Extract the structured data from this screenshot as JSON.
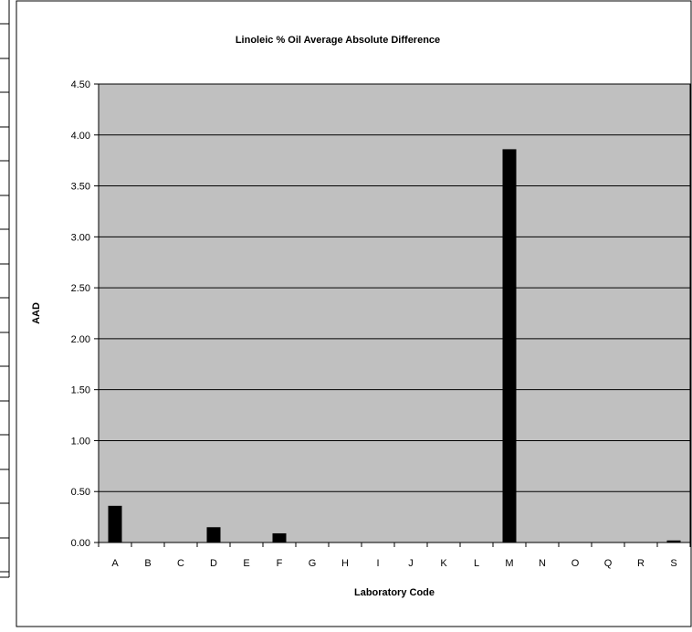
{
  "chart_data": {
    "type": "bar",
    "title": "Linoleic % Oil Average Absolute Difference",
    "xlabel": "Laboratory Code",
    "ylabel": "AAD",
    "categories": [
      "A",
      "B",
      "C",
      "D",
      "E",
      "F",
      "G",
      "H",
      "I",
      "J",
      "K",
      "L",
      "M",
      "N",
      "O",
      "Q",
      "R",
      "S"
    ],
    "values": [
      0.36,
      0,
      0,
      0.15,
      0,
      0.09,
      0,
      0,
      0,
      0,
      0,
      0,
      3.86,
      0,
      0,
      0,
      0,
      0.02
    ],
    "ylim": [
      0,
      4.5
    ],
    "yticks": [
      "0.00",
      "0.50",
      "1.00",
      "1.50",
      "2.00",
      "2.50",
      "3.00",
      "3.50",
      "4.00",
      "4.50"
    ],
    "grid": true,
    "legend": "none",
    "colors": {
      "plot_background": "#c0c0c0",
      "bar": "#000000",
      "gridline": "#000000",
      "page_background": "#ffffff"
    }
  }
}
